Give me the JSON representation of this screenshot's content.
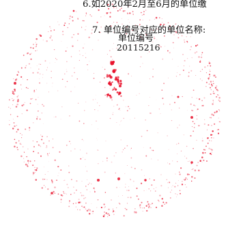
{
  "document": {
    "item_6_text": "6.如2020年2月至6月的单位缴",
    "item_7_text": "7. 单位编号对应的单位名称:",
    "unit_number_label": "单位编号",
    "unit_number_value": "20115216"
  },
  "seal": {
    "kind": "faded round red stamp",
    "color": "#e8102a"
  }
}
